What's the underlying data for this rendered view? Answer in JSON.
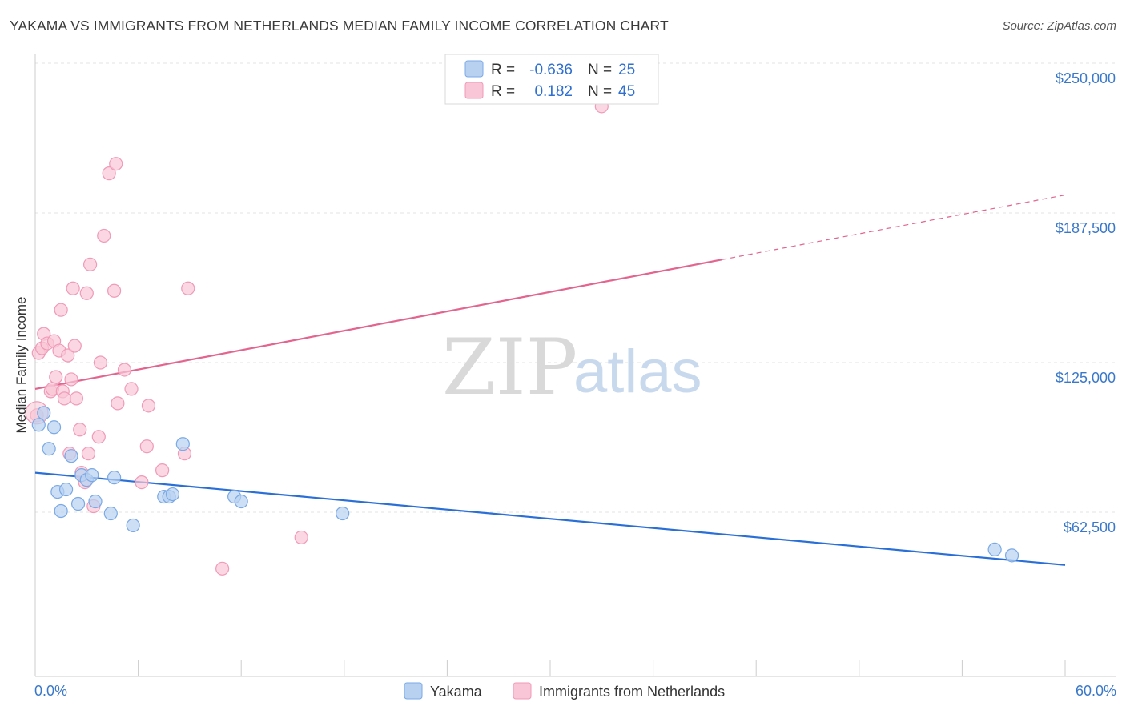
{
  "chart_data": {
    "type": "scatter",
    "title": "YAKAMA VS IMMIGRANTS FROM NETHERLANDS MEDIAN FAMILY INCOME CORRELATION CHART",
    "source": "Source: ZipAtlas.com",
    "xlabel": "",
    "ylabel": "Median Family Income",
    "xlim": [
      0,
      60
    ],
    "ylim": [
      0,
      255000
    ],
    "x_tick_labels": {
      "min": "0.0%",
      "max": "60.0%"
    },
    "y_ticks": [
      {
        "value": 62500,
        "label": "$62,500"
      },
      {
        "value": 125000,
        "label": "$125,000"
      },
      {
        "value": 187500,
        "label": "$187,500"
      },
      {
        "value": 250000,
        "label": "$250,000"
      }
    ],
    "watermark": {
      "zip": "ZIP",
      "atlas": "atlas"
    },
    "legend": {
      "rows": [
        {
          "r_label": "R =",
          "r_value": "-0.636",
          "n_label": "N =",
          "n_value": "25"
        },
        {
          "r_label": "R =",
          "r_value": "0.182",
          "n_label": "N =",
          "n_value": "45"
        }
      ]
    },
    "series": [
      {
        "name": "Yakama",
        "color": "#7aa9e6",
        "fill": "#b8d1f1",
        "line_color": "#2a6fd6",
        "trend": {
          "x0": 0,
          "y0": 79000,
          "x1": 60,
          "y1": 40500,
          "solid_until": 60
        },
        "points": [
          [
            0.2,
            99000
          ],
          [
            0.5,
            104000
          ],
          [
            0.8,
            89000
          ],
          [
            1.1,
            98000
          ],
          [
            1.3,
            71000
          ],
          [
            1.5,
            63000
          ],
          [
            1.8,
            72000
          ],
          [
            2.1,
            86000
          ],
          [
            2.5,
            66000
          ],
          [
            2.7,
            78000
          ],
          [
            3.0,
            76000
          ],
          [
            3.3,
            78000
          ],
          [
            3.5,
            67000
          ],
          [
            4.4,
            62000
          ],
          [
            4.6,
            77000
          ],
          [
            5.7,
            57000
          ],
          [
            7.5,
            69000
          ],
          [
            7.8,
            69000
          ],
          [
            8.0,
            70000
          ],
          [
            8.6,
            91000
          ],
          [
            11.6,
            69000
          ],
          [
            12.0,
            67000
          ],
          [
            17.9,
            62000
          ],
          [
            55.9,
            47000
          ],
          [
            56.9,
            44500
          ]
        ]
      },
      {
        "name": "Immigrants from Netherlands",
        "color": "#f09ab7",
        "fill": "#f8c6d6",
        "line_color": "#e3648f",
        "trend": {
          "x0": 0,
          "y0": 114000,
          "x1": 60,
          "y1": 195000,
          "solid_until": 40
        },
        "points": [
          [
            0.1,
            103000
          ],
          [
            0.2,
            129000
          ],
          [
            0.4,
            131000
          ],
          [
            0.5,
            137000
          ],
          [
            0.7,
            133000
          ],
          [
            0.9,
            113000
          ],
          [
            1.0,
            114000
          ],
          [
            1.1,
            134000
          ],
          [
            1.2,
            119000
          ],
          [
            1.4,
            130000
          ],
          [
            1.5,
            147000
          ],
          [
            1.6,
            113000
          ],
          [
            1.7,
            110000
          ],
          [
            1.9,
            128000
          ],
          [
            2.0,
            87000
          ],
          [
            2.1,
            118000
          ],
          [
            2.2,
            156000
          ],
          [
            2.3,
            132000
          ],
          [
            2.4,
            110000
          ],
          [
            2.6,
            97000
          ],
          [
            2.7,
            79000
          ],
          [
            2.9,
            75000
          ],
          [
            3.0,
            154000
          ],
          [
            3.1,
            87000
          ],
          [
            3.2,
            166000
          ],
          [
            3.4,
            65000
          ],
          [
            3.7,
            94000
          ],
          [
            3.8,
            125000
          ],
          [
            4.0,
            178000
          ],
          [
            4.3,
            204000
          ],
          [
            4.6,
            155000
          ],
          [
            4.7,
            208000
          ],
          [
            4.8,
            108000
          ],
          [
            5.2,
            122000
          ],
          [
            5.6,
            114000
          ],
          [
            6.2,
            75000
          ],
          [
            6.5,
            90000
          ],
          [
            6.6,
            107000
          ],
          [
            7.4,
            80000
          ],
          [
            8.7,
            87000
          ],
          [
            8.9,
            156000
          ],
          [
            10.9,
            39000
          ],
          [
            15.5,
            52000
          ],
          [
            33.0,
            232000
          ],
          [
            0.0,
            104000
          ]
        ]
      }
    ]
  }
}
